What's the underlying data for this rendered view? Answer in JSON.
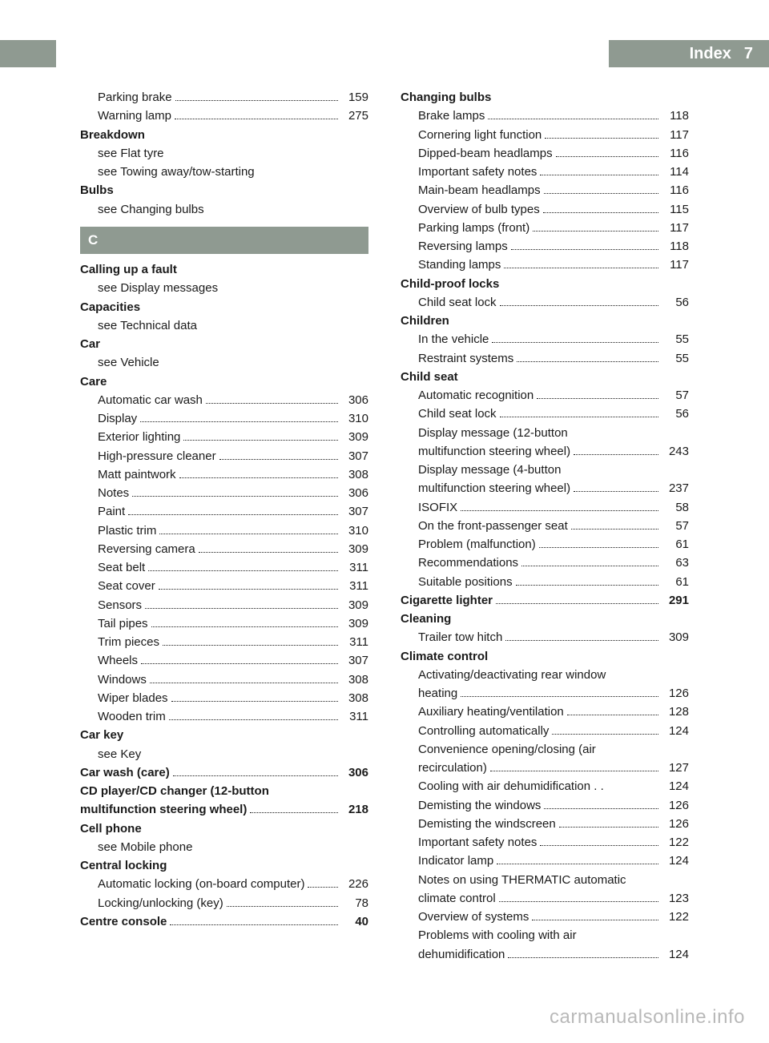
{
  "colors": {
    "header_bg": "#8f9a91",
    "header_text": "#ffffff",
    "body_text": "#1a1a1a",
    "page_bg": "#ffffff",
    "watermark": "rgba(0,0,0,0.28)"
  },
  "typography": {
    "body_fontsize": 15,
    "header_fontsize": 20,
    "section_fontsize": 17,
    "line_height": 1.55
  },
  "header": {
    "title": "Index",
    "page_number": "7"
  },
  "watermark": "carmanualsonline.info",
  "left_column": [
    {
      "type": "sub",
      "label": "Parking brake",
      "page": "159"
    },
    {
      "type": "sub",
      "label": "Warning lamp",
      "page": "275"
    },
    {
      "type": "head",
      "label": "Breakdown"
    },
    {
      "type": "see",
      "label": "see Flat tyre"
    },
    {
      "type": "see",
      "label": "see Towing away/tow-starting"
    },
    {
      "type": "head",
      "label": "Bulbs"
    },
    {
      "type": "see",
      "label": "see Changing bulbs"
    },
    {
      "type": "section",
      "label": "C"
    },
    {
      "type": "head",
      "label": "Calling up a fault"
    },
    {
      "type": "see",
      "label": "see Display messages"
    },
    {
      "type": "head",
      "label": "Capacities"
    },
    {
      "type": "see",
      "label": "see Technical data"
    },
    {
      "type": "head",
      "label": "Car"
    },
    {
      "type": "see",
      "label": "see Vehicle"
    },
    {
      "type": "head",
      "label": "Care"
    },
    {
      "type": "sub",
      "label": "Automatic car wash",
      "page": "306"
    },
    {
      "type": "sub",
      "label": "Display",
      "page": "310"
    },
    {
      "type": "sub",
      "label": "Exterior lighting",
      "page": "309"
    },
    {
      "type": "sub",
      "label": "High-pressure cleaner",
      "page": "307"
    },
    {
      "type": "sub",
      "label": "Matt paintwork",
      "page": "308"
    },
    {
      "type": "sub",
      "label": "Notes",
      "page": "306"
    },
    {
      "type": "sub",
      "label": "Paint",
      "page": "307"
    },
    {
      "type": "sub",
      "label": "Plastic trim",
      "page": "310"
    },
    {
      "type": "sub",
      "label": "Reversing camera",
      "page": "309"
    },
    {
      "type": "sub",
      "label": "Seat belt",
      "page": "311"
    },
    {
      "type": "sub",
      "label": "Seat cover",
      "page": "311"
    },
    {
      "type": "sub",
      "label": "Sensors",
      "page": "309"
    },
    {
      "type": "sub",
      "label": "Tail pipes",
      "page": "309"
    },
    {
      "type": "sub",
      "label": "Trim pieces",
      "page": "311"
    },
    {
      "type": "sub",
      "label": "Wheels",
      "page": "307"
    },
    {
      "type": "sub",
      "label": "Windows",
      "page": "308"
    },
    {
      "type": "sub",
      "label": "Wiper blades",
      "page": "308"
    },
    {
      "type": "sub",
      "label": "Wooden trim",
      "page": "311"
    },
    {
      "type": "head",
      "label": "Car key"
    },
    {
      "type": "see",
      "label": "see Key"
    },
    {
      "type": "head-line",
      "label": "Car wash (care)",
      "page": "306"
    },
    {
      "type": "head-line",
      "label": "CD player/CD changer (12-button multifunction steering wheel)",
      "page": "218"
    },
    {
      "type": "head",
      "label": "Cell phone"
    },
    {
      "type": "see",
      "label": "see Mobile phone"
    },
    {
      "type": "head",
      "label": "Central locking"
    },
    {
      "type": "sub",
      "label": "Automatic locking (on-board computer)",
      "page": "226"
    },
    {
      "type": "sub",
      "label": "Locking/unlocking (key)",
      "page": "78"
    },
    {
      "type": "head-line",
      "label": "Centre console",
      "page": "40"
    }
  ],
  "right_column": [
    {
      "type": "head",
      "label": "Changing bulbs"
    },
    {
      "type": "sub",
      "label": "Brake lamps",
      "page": "118"
    },
    {
      "type": "sub",
      "label": "Cornering light function",
      "page": "117"
    },
    {
      "type": "sub",
      "label": "Dipped-beam headlamps",
      "page": "116"
    },
    {
      "type": "sub",
      "label": "Important safety notes",
      "page": "114"
    },
    {
      "type": "sub",
      "label": "Main-beam headlamps",
      "page": "116"
    },
    {
      "type": "sub",
      "label": "Overview of bulb types",
      "page": "115"
    },
    {
      "type": "sub",
      "label": "Parking lamps (front)",
      "page": "117"
    },
    {
      "type": "sub",
      "label": "Reversing lamps",
      "page": "118"
    },
    {
      "type": "sub",
      "label": "Standing lamps",
      "page": "117"
    },
    {
      "type": "head",
      "label": "Child-proof locks"
    },
    {
      "type": "sub",
      "label": "Child seat lock",
      "page": "56"
    },
    {
      "type": "head",
      "label": "Children"
    },
    {
      "type": "sub",
      "label": "In the vehicle",
      "page": "55"
    },
    {
      "type": "sub",
      "label": "Restraint systems",
      "page": "55"
    },
    {
      "type": "head",
      "label": "Child seat"
    },
    {
      "type": "sub",
      "label": "Automatic recognition",
      "page": "57"
    },
    {
      "type": "sub",
      "label": "Child seat lock",
      "page": "56"
    },
    {
      "type": "sub",
      "label": "Display message (12-button multifunction steering wheel)",
      "page": "243"
    },
    {
      "type": "sub",
      "label": "Display message (4-button multifunction steering wheel)",
      "page": "237"
    },
    {
      "type": "sub",
      "label": "ISOFIX",
      "page": "58"
    },
    {
      "type": "sub",
      "label": "On the front-passenger seat",
      "page": "57"
    },
    {
      "type": "sub",
      "label": "Problem (malfunction)",
      "page": "61"
    },
    {
      "type": "sub",
      "label": "Recommendations",
      "page": "63"
    },
    {
      "type": "sub",
      "label": "Suitable positions",
      "page": "61"
    },
    {
      "type": "head-line",
      "label": "Cigarette lighter",
      "page": "291"
    },
    {
      "type": "head",
      "label": "Cleaning"
    },
    {
      "type": "sub",
      "label": "Trailer tow hitch",
      "page": "309"
    },
    {
      "type": "head",
      "label": "Climate control"
    },
    {
      "type": "sub",
      "label": "Activating/deactivating rear window heating",
      "page": "126"
    },
    {
      "type": "sub",
      "label": "Auxiliary heating/ventilation",
      "page": "128"
    },
    {
      "type": "sub",
      "label": "Controlling automatically",
      "page": "124"
    },
    {
      "type": "sub",
      "label": "Convenience opening/closing (air recirculation)",
      "page": "127"
    },
    {
      "type": "sub",
      "label": "Cooling with air dehumidification . .",
      "page": "124",
      "nodots": true
    },
    {
      "type": "sub",
      "label": "Demisting the windows",
      "page": "126"
    },
    {
      "type": "sub",
      "label": "Demisting the windscreen",
      "page": "126"
    },
    {
      "type": "sub",
      "label": "Important safety notes",
      "page": "122"
    },
    {
      "type": "sub",
      "label": "Indicator lamp",
      "page": "124"
    },
    {
      "type": "sub",
      "label": "Notes on using THERMATIC automatic climate control",
      "page": "123"
    },
    {
      "type": "sub",
      "label": "Overview of systems",
      "page": "122"
    },
    {
      "type": "sub",
      "label": "Problems with cooling with air dehumidification",
      "page": "124"
    }
  ]
}
